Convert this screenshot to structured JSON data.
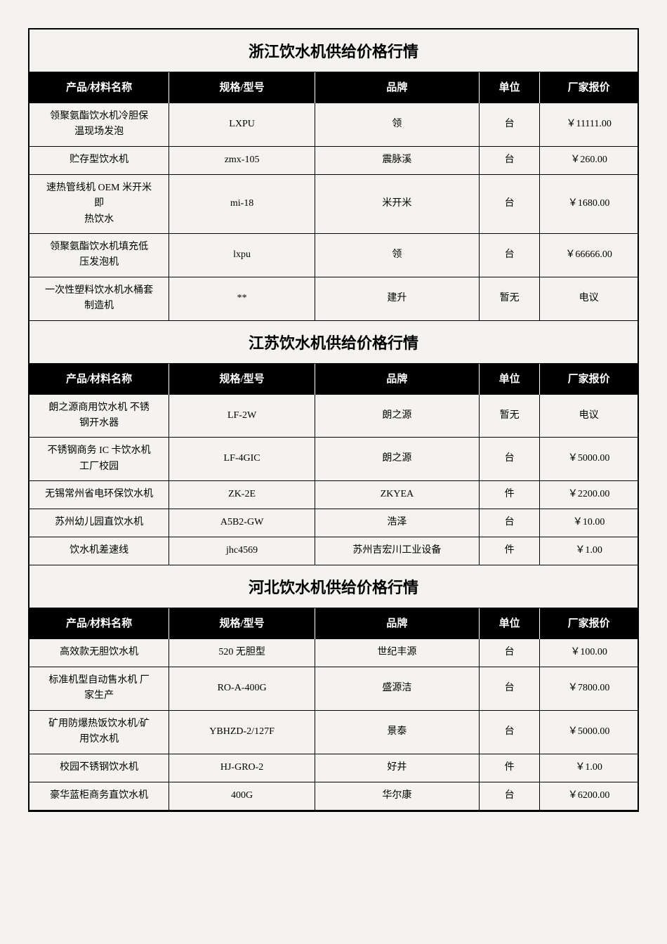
{
  "columns": [
    "产品/材料名称",
    "规格/型号",
    "品牌",
    "单位",
    "厂家报价"
  ],
  "sections": [
    {
      "title": "浙江饮水机供给价格行情",
      "rows": [
        {
          "name": "领聚氨酯饮水机冷胆保\n温现场发泡",
          "model": "LXPU",
          "brand": "领",
          "unit": "台",
          "price": "￥11111.00"
        },
        {
          "name": "贮存型饮水机",
          "model": "zmx-105",
          "brand": "震脉溪",
          "unit": "台",
          "price": "￥260.00"
        },
        {
          "name": "速热管线机 OEM 米开米\n即\n热饮水",
          "model": "mi-18",
          "brand": "米开米",
          "unit": "台",
          "price": "￥1680.00"
        },
        {
          "name": "领聚氨酯饮水机填充低\n压发泡机",
          "model": "lxpu",
          "brand": "领",
          "unit": "台",
          "price": "￥66666.00"
        },
        {
          "name": "一次性塑料饮水机水桶套\n制造机",
          "model": "**",
          "brand": "建升",
          "unit": "暂无",
          "price": "电议"
        }
      ]
    },
    {
      "title": "江苏饮水机供给价格行情",
      "rows": [
        {
          "name": "朗之源商用饮水机  不锈\n钢开水器",
          "model": "LF-2W",
          "brand": "朗之源",
          "unit": "暂无",
          "price": "电议"
        },
        {
          "name": "不锈钢商务 IC 卡饮水机\n工厂校园",
          "model": "LF-4GIC",
          "brand": "朗之源",
          "unit": "台",
          "price": "￥5000.00"
        },
        {
          "name": "无锡常州省电环保饮水机",
          "model": "ZK-2E",
          "brand": "ZKYEA",
          "unit": "件",
          "price": "￥2200.00"
        },
        {
          "name": "苏州幼儿园直饮水机",
          "model": "A5B2-GW",
          "brand": "浩泽",
          "unit": "台",
          "price": "￥10.00"
        },
        {
          "name": "饮水机差速线",
          "model": "jhc4569",
          "brand": "苏州吉宏川工业设备",
          "unit": "件",
          "price": "￥1.00"
        }
      ]
    },
    {
      "title": "河北饮水机供给价格行情",
      "rows": [
        {
          "name": "高效款无胆饮水机",
          "model": "520 无胆型",
          "brand": "世纪丰源",
          "unit": "台",
          "price": "￥100.00"
        },
        {
          "name": "标准机型自动售水机 厂\n家生产",
          "model": "RO-A-400G",
          "brand": "盛源洁",
          "unit": "台",
          "price": "￥7800.00"
        },
        {
          "name": "矿用防爆热饭饮水机/矿\n用饮水机",
          "model": "YBHZD-2/127F",
          "brand": "景泰",
          "unit": "台",
          "price": "￥5000.00"
        },
        {
          "name": "校园不锈钢饮水机",
          "model": "HJ-GRO-2",
          "brand": "好井",
          "unit": "件",
          "price": "￥1.00"
        },
        {
          "name": "豪华蓝柜商务直饮水机",
          "model": "400G",
          "brand": "华尔康",
          "unit": "台",
          "price": "￥6200.00"
        }
      ]
    }
  ]
}
